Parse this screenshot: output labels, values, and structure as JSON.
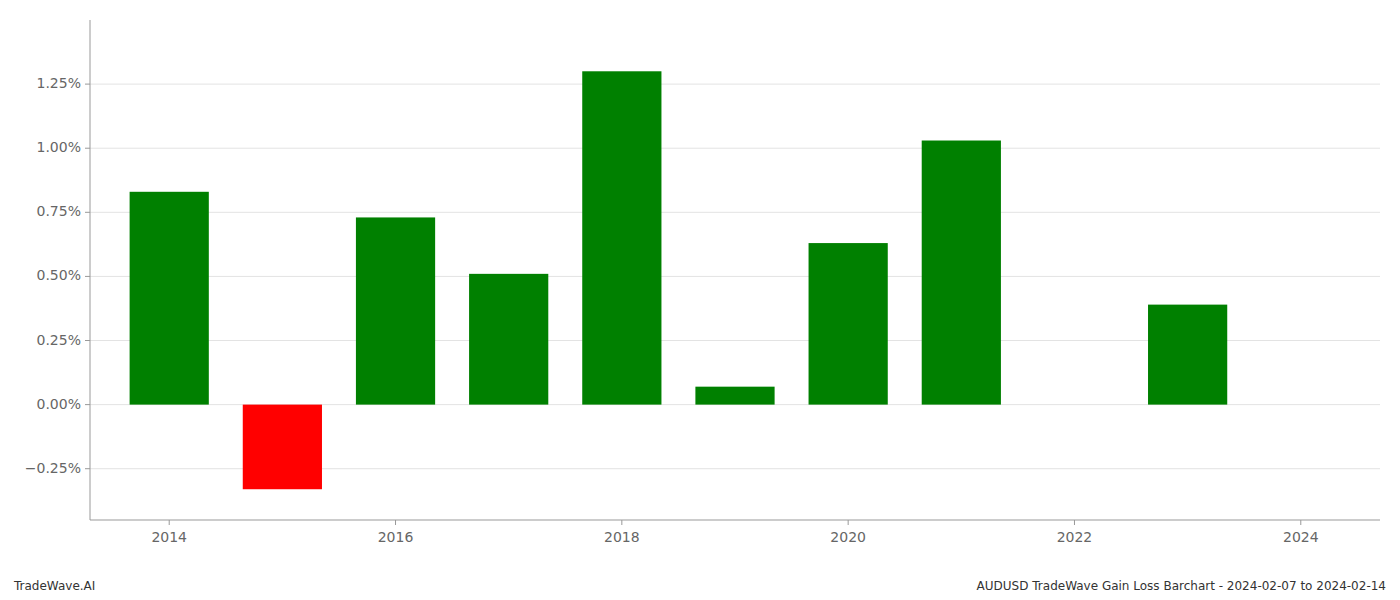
{
  "chart_data": {
    "type": "bar",
    "x": [
      2014,
      2015,
      2016,
      2017,
      2018,
      2019,
      2020,
      2021,
      2022,
      2023
    ],
    "values": [
      0.0083,
      -0.0033,
      0.0073,
      0.0051,
      0.013,
      0.0007,
      0.0063,
      0.0103,
      0.0,
      0.0039
    ],
    "colors": [
      "#008000",
      "#ff0000",
      "#008000",
      "#008000",
      "#008000",
      "#008000",
      "#008000",
      "#008000",
      "#008000",
      "#008000"
    ],
    "xlim": [
      2013.3,
      2024.7
    ],
    "xticks": [
      2014,
      2016,
      2018,
      2020,
      2022,
      2024
    ],
    "ylim": [
      -0.0045,
      0.015
    ],
    "yticks": [
      {
        "value": -0.0025,
        "label": "−0.25%"
      },
      {
        "value": 0.0,
        "label": "0.00%"
      },
      {
        "value": 0.0025,
        "label": "0.25%"
      },
      {
        "value": 0.005,
        "label": "0.50%"
      },
      {
        "value": 0.0075,
        "label": "0.75%"
      },
      {
        "value": 0.01,
        "label": "1.00%"
      },
      {
        "value": 0.0125,
        "label": "1.25%"
      }
    ],
    "grid": true,
    "annotations": [
      "TradeWave.AI",
      "AUDUSD TradeWave Gain Loss Barchart - 2024-02-07 to 2024-02-14"
    ]
  }
}
